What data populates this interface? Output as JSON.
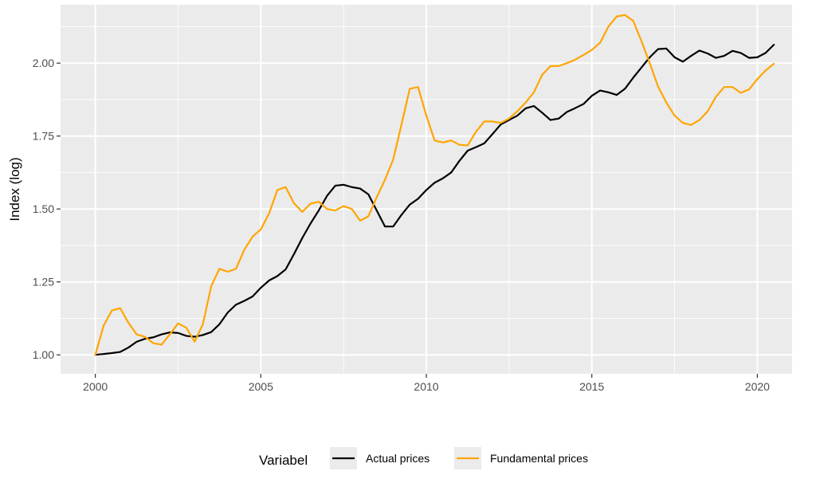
{
  "chart_data": {
    "type": "line",
    "xlabel": "",
    "ylabel": "Index (log)",
    "xlim": [
      1998.95,
      2021.05
    ],
    "ylim": [
      0.935,
      2.2
    ],
    "x_ticks": [
      2000,
      2005,
      2010,
      2015,
      2020
    ],
    "x_tick_labels": [
      "2000",
      "2005",
      "2010",
      "2015",
      "2020"
    ],
    "y_ticks": [
      1.0,
      1.25,
      1.5,
      1.75,
      2.0
    ],
    "y_tick_labels": [
      "1.00",
      "1.25",
      "1.50",
      "1.75",
      "2.00"
    ],
    "grid": true,
    "legend": {
      "title": "Variabel",
      "position": "bottom"
    },
    "colors": {
      "panel_bg": "#ebebeb",
      "grid": "#ffffff",
      "actual": "#000000",
      "fundamental": "#ffa500"
    },
    "series": [
      {
        "name": "Actual prices",
        "color": "#000000",
        "points": [
          [
            2000,
            1.0
          ],
          [
            2000.25,
            1.003
          ],
          [
            2000.5,
            1.006
          ],
          [
            2000.75,
            1.01
          ],
          [
            2001,
            1.025
          ],
          [
            2001.25,
            1.045
          ],
          [
            2001.5,
            1.055
          ],
          [
            2001.75,
            1.06
          ],
          [
            2002,
            1.07
          ],
          [
            2002.25,
            1.077
          ],
          [
            2002.5,
            1.075
          ],
          [
            2002.75,
            1.065
          ],
          [
            2003,
            1.062
          ],
          [
            2003.25,
            1.068
          ],
          [
            2003.5,
            1.078
          ],
          [
            2003.75,
            1.105
          ],
          [
            2004,
            1.145
          ],
          [
            2004.25,
            1.172
          ],
          [
            2004.5,
            1.185
          ],
          [
            2004.75,
            1.2
          ],
          [
            2005,
            1.23
          ],
          [
            2005.25,
            1.255
          ],
          [
            2005.5,
            1.27
          ],
          [
            2005.75,
            1.293
          ],
          [
            2006,
            1.345
          ],
          [
            2006.25,
            1.4
          ],
          [
            2006.5,
            1.45
          ],
          [
            2006.75,
            1.495
          ],
          [
            2007,
            1.545
          ],
          [
            2007.25,
            1.58
          ],
          [
            2007.5,
            1.583
          ],
          [
            2007.75,
            1.575
          ],
          [
            2008,
            1.57
          ],
          [
            2008.25,
            1.55
          ],
          [
            2008.5,
            1.495
          ],
          [
            2008.75,
            1.44
          ],
          [
            2009,
            1.44
          ],
          [
            2009.25,
            1.48
          ],
          [
            2009.5,
            1.515
          ],
          [
            2009.75,
            1.535
          ],
          [
            2010,
            1.565
          ],
          [
            2010.25,
            1.59
          ],
          [
            2010.5,
            1.605
          ],
          [
            2010.75,
            1.625
          ],
          [
            2011,
            1.665
          ],
          [
            2011.25,
            1.7
          ],
          [
            2011.5,
            1.712
          ],
          [
            2011.75,
            1.725
          ],
          [
            2012,
            1.757
          ],
          [
            2012.25,
            1.79
          ],
          [
            2012.5,
            1.805
          ],
          [
            2012.75,
            1.82
          ],
          [
            2013,
            1.845
          ],
          [
            2013.25,
            1.853
          ],
          [
            2013.5,
            1.83
          ],
          [
            2013.75,
            1.805
          ],
          [
            2014,
            1.81
          ],
          [
            2014.25,
            1.833
          ],
          [
            2014.5,
            1.846
          ],
          [
            2014.75,
            1.86
          ],
          [
            2015,
            1.888
          ],
          [
            2015.25,
            1.906
          ],
          [
            2015.5,
            1.9
          ],
          [
            2015.75,
            1.891
          ],
          [
            2016,
            1.912
          ],
          [
            2016.25,
            1.95
          ],
          [
            2016.5,
            1.985
          ],
          [
            2016.75,
            2.02
          ],
          [
            2017,
            2.048
          ],
          [
            2017.25,
            2.05
          ],
          [
            2017.5,
            2.02
          ],
          [
            2017.75,
            2.005
          ],
          [
            2018,
            2.025
          ],
          [
            2018.25,
            2.043
          ],
          [
            2018.5,
            2.033
          ],
          [
            2018.75,
            2.018
          ],
          [
            2019,
            2.025
          ],
          [
            2019.25,
            2.042
          ],
          [
            2019.5,
            2.035
          ],
          [
            2019.75,
            2.018
          ],
          [
            2020,
            2.02
          ],
          [
            2020.25,
            2.035
          ],
          [
            2020.5,
            2.063
          ]
        ]
      },
      {
        "name": "Fundamental prices",
        "color": "#ffa500",
        "points": [
          [
            2000,
            1.0
          ],
          [
            2000.25,
            1.1
          ],
          [
            2000.5,
            1.152
          ],
          [
            2000.75,
            1.16
          ],
          [
            2001,
            1.11
          ],
          [
            2001.25,
            1.07
          ],
          [
            2001.5,
            1.062
          ],
          [
            2001.75,
            1.04
          ],
          [
            2002,
            1.035
          ],
          [
            2002.25,
            1.07
          ],
          [
            2002.5,
            1.108
          ],
          [
            2002.75,
            1.093
          ],
          [
            2003,
            1.045
          ],
          [
            2003.25,
            1.105
          ],
          [
            2003.5,
            1.235
          ],
          [
            2003.75,
            1.295
          ],
          [
            2004,
            1.285
          ],
          [
            2004.25,
            1.295
          ],
          [
            2004.5,
            1.36
          ],
          [
            2004.75,
            1.405
          ],
          [
            2005,
            1.43
          ],
          [
            2005.25,
            1.485
          ],
          [
            2005.5,
            1.565
          ],
          [
            2005.75,
            1.575
          ],
          [
            2006,
            1.52
          ],
          [
            2006.25,
            1.49
          ],
          [
            2006.5,
            1.518
          ],
          [
            2006.75,
            1.525
          ],
          [
            2007,
            1.5
          ],
          [
            2007.25,
            1.495
          ],
          [
            2007.5,
            1.51
          ],
          [
            2007.75,
            1.5
          ],
          [
            2008,
            1.46
          ],
          [
            2008.25,
            1.475
          ],
          [
            2008.5,
            1.54
          ],
          [
            2008.75,
            1.6
          ],
          [
            2009,
            1.67
          ],
          [
            2009.25,
            1.79
          ],
          [
            2009.5,
            1.912
          ],
          [
            2009.75,
            1.918
          ],
          [
            2010,
            1.82
          ],
          [
            2010.25,
            1.735
          ],
          [
            2010.5,
            1.728
          ],
          [
            2010.75,
            1.735
          ],
          [
            2011,
            1.72
          ],
          [
            2011.25,
            1.718
          ],
          [
            2011.5,
            1.765
          ],
          [
            2011.75,
            1.8
          ],
          [
            2012,
            1.8
          ],
          [
            2012.25,
            1.795
          ],
          [
            2012.5,
            1.81
          ],
          [
            2012.75,
            1.835
          ],
          [
            2013,
            1.865
          ],
          [
            2013.25,
            1.9
          ],
          [
            2013.5,
            1.96
          ],
          [
            2013.75,
            1.99
          ],
          [
            2014,
            1.99
          ],
          [
            2014.25,
            2.0
          ],
          [
            2014.5,
            2.012
          ],
          [
            2014.75,
            2.028
          ],
          [
            2015,
            2.045
          ],
          [
            2015.25,
            2.07
          ],
          [
            2015.5,
            2.125
          ],
          [
            2015.75,
            2.16
          ],
          [
            2016,
            2.165
          ],
          [
            2016.25,
            2.145
          ],
          [
            2016.5,
            2.075
          ],
          [
            2016.75,
            2.0
          ],
          [
            2017,
            1.92
          ],
          [
            2017.25,
            1.865
          ],
          [
            2017.5,
            1.82
          ],
          [
            2017.75,
            1.795
          ],
          [
            2018,
            1.788
          ],
          [
            2018.25,
            1.805
          ],
          [
            2018.5,
            1.835
          ],
          [
            2018.75,
            1.885
          ],
          [
            2019,
            1.918
          ],
          [
            2019.25,
            1.918
          ],
          [
            2019.5,
            1.898
          ],
          [
            2019.75,
            1.91
          ],
          [
            2020,
            1.945
          ],
          [
            2020.25,
            1.975
          ],
          [
            2020.5,
            1.998
          ]
        ]
      }
    ]
  }
}
